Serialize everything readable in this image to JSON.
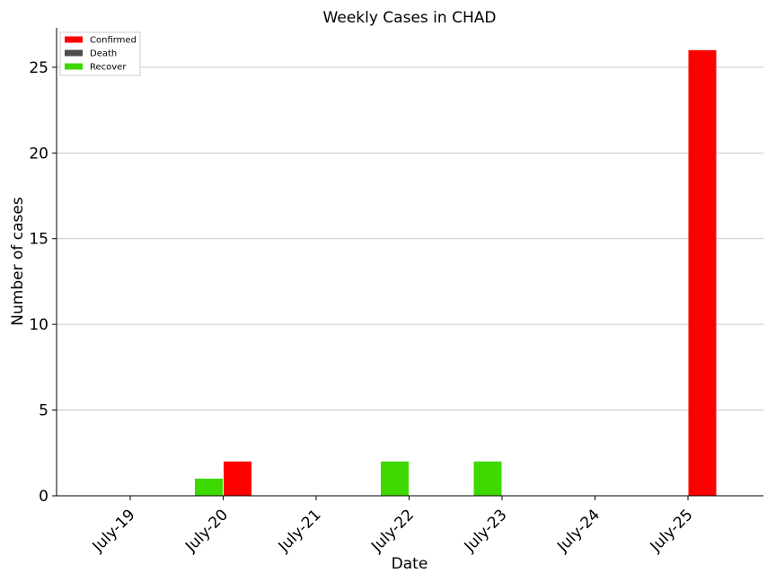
{
  "chart_data": {
    "type": "bar",
    "title": "Weekly Cases in CHAD",
    "xlabel": "Date",
    "ylabel": "Number of cases",
    "categories": [
      "July-19",
      "July-20",
      "July-21",
      "July-22",
      "July-23",
      "July-24",
      "July-25"
    ],
    "series": [
      {
        "name": "Confirmed",
        "color": "#ff0000",
        "values": [
          0,
          2,
          0,
          0,
          0,
          0,
          26
        ]
      },
      {
        "name": "Death",
        "color": "#4d4d4d",
        "values": [
          0,
          0,
          0,
          0,
          0,
          0,
          0
        ]
      },
      {
        "name": "Recover",
        "color": "#3dd900",
        "values": [
          0,
          1,
          0,
          2,
          2,
          0,
          0
        ]
      }
    ],
    "ylim": [
      0,
      27.3
    ],
    "yticks": [
      0,
      5,
      10,
      15,
      20,
      25
    ],
    "grid": "horizontal",
    "legend": "top-left"
  }
}
